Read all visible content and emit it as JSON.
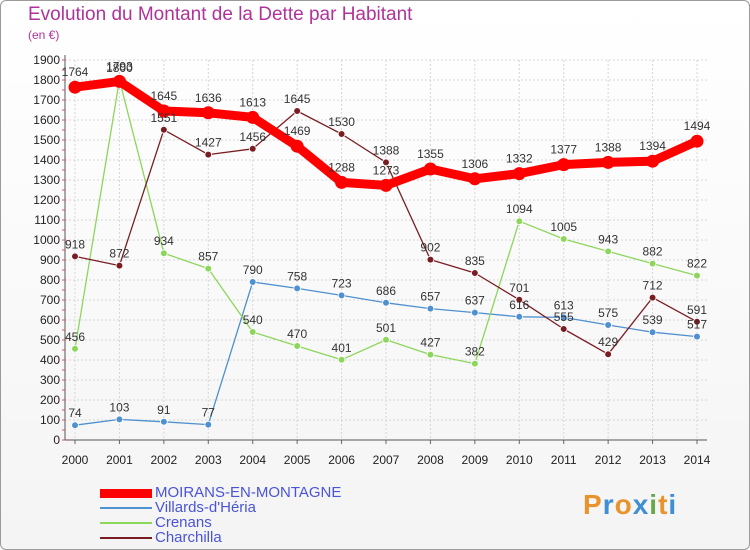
{
  "header": {
    "title": "Evolution du Montant de la Dette par Habitant",
    "subtitle": "(en €)"
  },
  "logo": {
    "text": "Proxiti",
    "letters": [
      "P",
      "r",
      "o",
      "x",
      "i",
      "t",
      "i"
    ],
    "colors": [
      "#e8932b",
      "#3f8fd2",
      "#e8932b",
      "#3f8fd2",
      "#6aa84f",
      "#e8932b",
      "#3f8fd2"
    ]
  },
  "chart_data": {
    "type": "line",
    "title": "Evolution du Montant de la Dette par Habitant",
    "ylabel": "(en €)",
    "xlabel": "",
    "x": [
      "2000",
      "2001",
      "2002",
      "2003",
      "2004",
      "2005",
      "2006",
      "2007",
      "2008",
      "2009",
      "2010",
      "2011",
      "2012",
      "2013",
      "2014"
    ],
    "ylim": [
      0,
      1900
    ],
    "yticks": [
      0,
      100,
      200,
      300,
      400,
      500,
      600,
      700,
      800,
      900,
      1000,
      1100,
      1200,
      1300,
      1400,
      1500,
      1600,
      1700,
      1800,
      1900
    ],
    "grid": true,
    "legend_position": "bottom-left",
    "series": [
      {
        "name": "MOIRANS-EN-MONTAGNE",
        "color": "#ff0000",
        "emphasis": true,
        "values": [
          1764,
          1793,
          1645,
          1636,
          1613,
          1469,
          1288,
          1273,
          1355,
          1306,
          1332,
          1377,
          1388,
          1394,
          1494
        ],
        "labels": [
          "1764",
          "1793",
          "1645",
          "1636",
          "1613",
          "1469",
          "1288",
          "1273",
          "1355",
          "1306",
          "1332",
          "1377",
          "1388",
          "1394",
          "1494"
        ]
      },
      {
        "name": "Villards-d'Héria",
        "color": "#4f90d0",
        "values": [
          74,
          103,
          91,
          77,
          790,
          758,
          723,
          686,
          657,
          637,
          616,
          613,
          575,
          539,
          517
        ],
        "labels": [
          "74",
          "103",
          "91",
          "77",
          "790",
          "758",
          "723",
          "686",
          "657",
          "637",
          "616",
          "613",
          "575",
          "539",
          "517"
        ]
      },
      {
        "name": "Crenans",
        "color": "#8dd65c",
        "values": [
          456,
          1800,
          934,
          857,
          540,
          470,
          401,
          501,
          427,
          382,
          1094,
          1005,
          943,
          882,
          822
        ],
        "labels": [
          "456",
          "1800",
          "934",
          "857",
          "540",
          "470",
          "401",
          "501",
          "427",
          "382",
          "1094",
          "1005",
          "943",
          "882",
          "822"
        ]
      },
      {
        "name": "Charchilla",
        "color": "#7a1d22",
        "values": [
          918,
          872,
          1551,
          1427,
          1456,
          1645,
          1530,
          1388,
          902,
          835,
          701,
          555,
          429,
          712,
          591
        ],
        "labels": [
          "918",
          "872",
          "1551",
          "1427",
          "1456",
          "1645",
          "1530",
          "1388",
          "902",
          "835",
          "701",
          "555",
          "429",
          "712",
          "591"
        ]
      }
    ]
  }
}
